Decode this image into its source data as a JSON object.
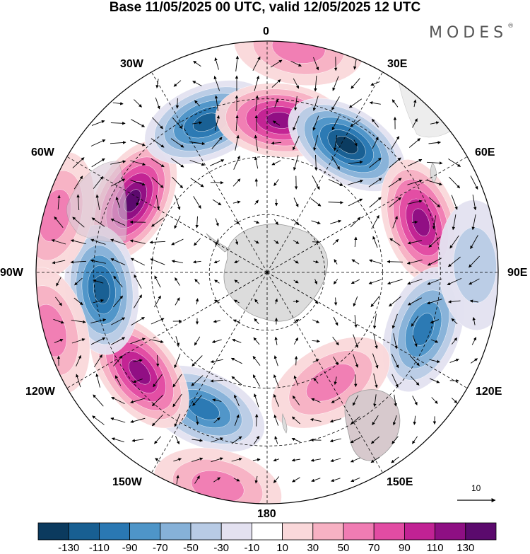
{
  "title": "Base 11/05/2025 00 UTC, valid 12/05/2025 12 UTC",
  "brand": {
    "name": "MODES",
    "mark": "®"
  },
  "longitude_labels": {
    "n0": "0",
    "e30": "30E",
    "e60": "60E",
    "e90": "90E",
    "e120": "120E",
    "e150": "150E",
    "s180": "180",
    "w150": "150W",
    "w120": "120W",
    "w90": "90W",
    "w60": "60W",
    "w30": "30W"
  },
  "reference_vector": {
    "label": "10"
  },
  "colorbar": {
    "colors": [
      "#0b3a5e",
      "#185f92",
      "#2a78b3",
      "#4e95c8",
      "#86b1d8",
      "#b8cbe5",
      "#e3e1f0",
      "#ffffff",
      "#fad8da",
      "#f7b1c3",
      "#f07cb3",
      "#e24ca3",
      "#c12294",
      "#8e0f83",
      "#5b0a6d"
    ],
    "labels": [
      "-130",
      "-110",
      "-90",
      "-70",
      "-50",
      "-30",
      "-10",
      "10",
      "30",
      "50",
      "70",
      "90",
      "110",
      "130"
    ]
  },
  "anomaly_centers": [
    {
      "lon": -62,
      "r": 0.66,
      "v": 130
    },
    {
      "lon": -22,
      "r": 0.7,
      "v": -105
    },
    {
      "lon": 5,
      "r": 0.66,
      "v": 110
    },
    {
      "lon": 32,
      "r": 0.65,
      "v": -125
    },
    {
      "lon": 72,
      "r": 0.7,
      "v": 110
    },
    {
      "lon": 110,
      "r": 0.72,
      "v": -80
    },
    {
      "lon": 150,
      "r": 0.55,
      "v": 45
    },
    {
      "lon": -155,
      "r": 0.65,
      "v": -85
    },
    {
      "lon": -128,
      "r": 0.7,
      "v": 100
    },
    {
      "lon": -96,
      "r": 0.72,
      "v": -100
    },
    {
      "lon": -75,
      "r": 0.95,
      "v": 40
    },
    {
      "lon": -167,
      "r": 0.95,
      "v": 50
    },
    {
      "lon": 88,
      "r": 0.9,
      "v": -30
    },
    {
      "lon": 8,
      "r": 0.98,
      "v": 40
    },
    {
      "lon": -105,
      "r": 0.97,
      "v": 35
    }
  ]
}
